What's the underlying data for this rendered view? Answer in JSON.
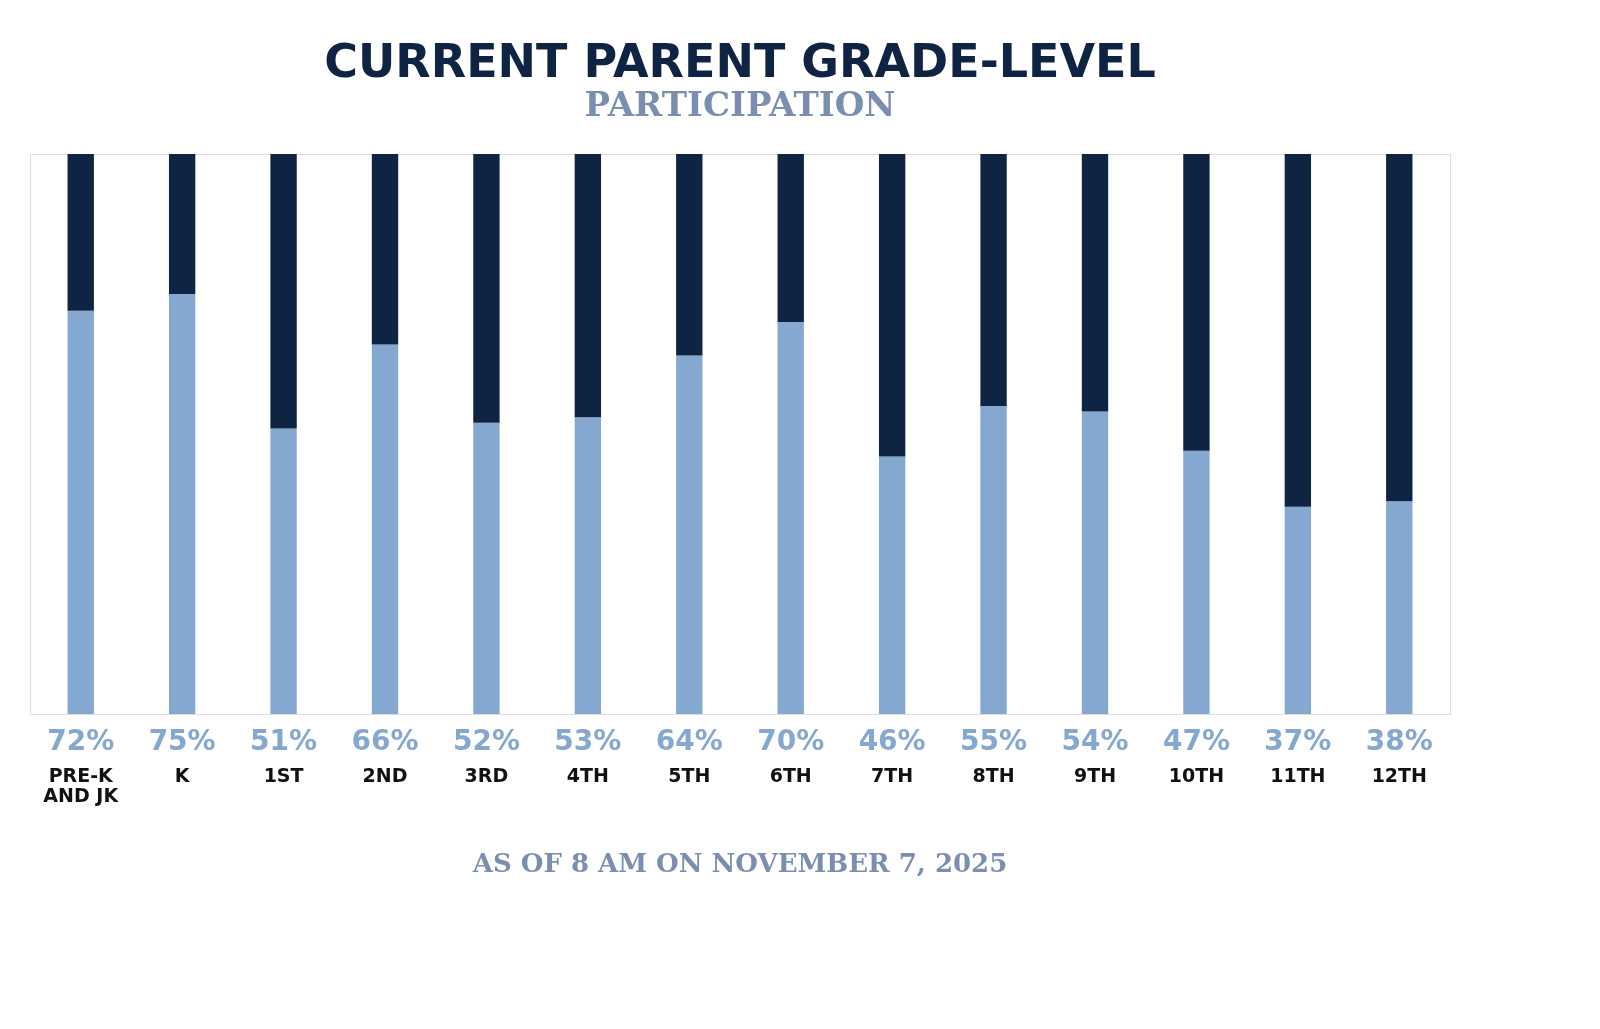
{
  "chart_data": {
    "type": "bar",
    "title": "CURRENT PARENT GRADE-LEVEL",
    "subtitle": "PARTICIPATION",
    "categories": [
      "PRE-K\nAND JK",
      "K",
      "1ST",
      "2ND",
      "3RD",
      "4TH",
      "5TH",
      "6TH",
      "7TH",
      "8TH",
      "9TH",
      "10TH",
      "11TH",
      "12TH"
    ],
    "stacked": true,
    "ylim": [
      0,
      100
    ],
    "tick_labels": "x",
    "grid": false,
    "series": [
      {
        "color": "#84a8cf",
        "values": [
          72,
          75,
          51,
          66,
          52,
          53,
          64,
          70,
          46,
          55,
          54,
          47,
          37,
          38
        ],
        "value_labels": [
          "72%",
          "75%",
          "51%",
          "66%",
          "52%",
          "53%",
          "64%",
          "70%",
          "46%",
          "55%",
          "54%",
          "47%",
          "37%",
          "38%"
        ]
      },
      {
        "color": "#0f2342",
        "values": [
          28,
          25,
          49,
          34,
          48,
          47,
          36,
          30,
          54,
          45,
          46,
          53,
          63,
          62
        ]
      }
    ],
    "annotations": [
      "AS OF 8 AM ON NOVEMBER 7, 2025"
    ]
  }
}
